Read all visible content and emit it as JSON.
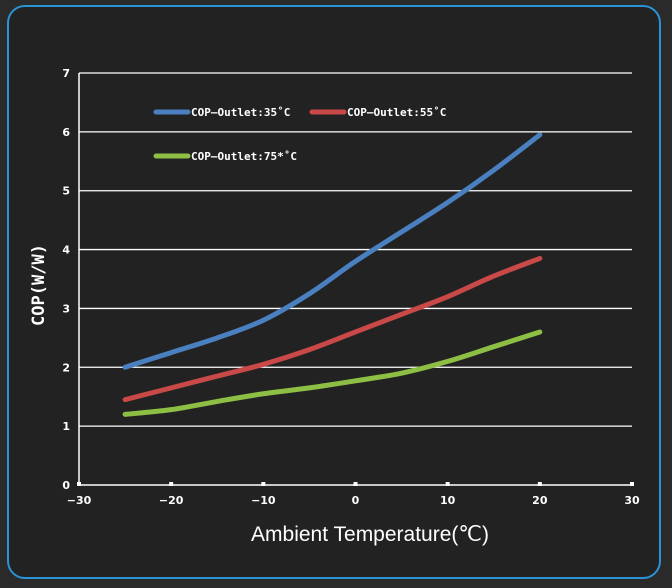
{
  "chart_data": {
    "type": "line",
    "xlabel": "Ambient Temperature(℃)",
    "ylabel": "COP(W/W)",
    "xlim": [
      -30,
      30
    ],
    "ylim": [
      0,
      7
    ],
    "x_ticks": [
      "−30",
      "−20",
      "−10",
      "0",
      "10",
      "20",
      "30"
    ],
    "y_ticks": [
      "0",
      "1",
      "2",
      "3",
      "4",
      "5",
      "6",
      "7"
    ],
    "grid": "horizontal",
    "legend_position": "top-left",
    "series": [
      {
        "name": "COP—Outlet:35˚C",
        "color": "#4a7fc0",
        "x": [
          -25,
          -20,
          -15,
          -10,
          -5,
          0,
          5,
          10,
          15,
          20
        ],
        "y": [
          2.0,
          2.25,
          2.5,
          2.8,
          3.25,
          3.8,
          4.3,
          4.8,
          5.35,
          5.95
        ]
      },
      {
        "name": "COP—Outlet:55˚C",
        "color": "#c94848",
        "x": [
          -25,
          -20,
          -15,
          -10,
          -5,
          0,
          5,
          10,
          15,
          20
        ],
        "y": [
          1.45,
          1.65,
          1.85,
          2.05,
          2.3,
          2.6,
          2.9,
          3.2,
          3.55,
          3.85
        ]
      },
      {
        "name": "COP—Outlet:75*˚C",
        "color": "#8dbf45",
        "x": [
          -25,
          -20,
          -15,
          -10,
          -5,
          0,
          5,
          10,
          15,
          20
        ],
        "y": [
          1.2,
          1.28,
          1.42,
          1.55,
          1.65,
          1.77,
          1.9,
          2.1,
          2.35,
          2.6
        ]
      }
    ]
  }
}
